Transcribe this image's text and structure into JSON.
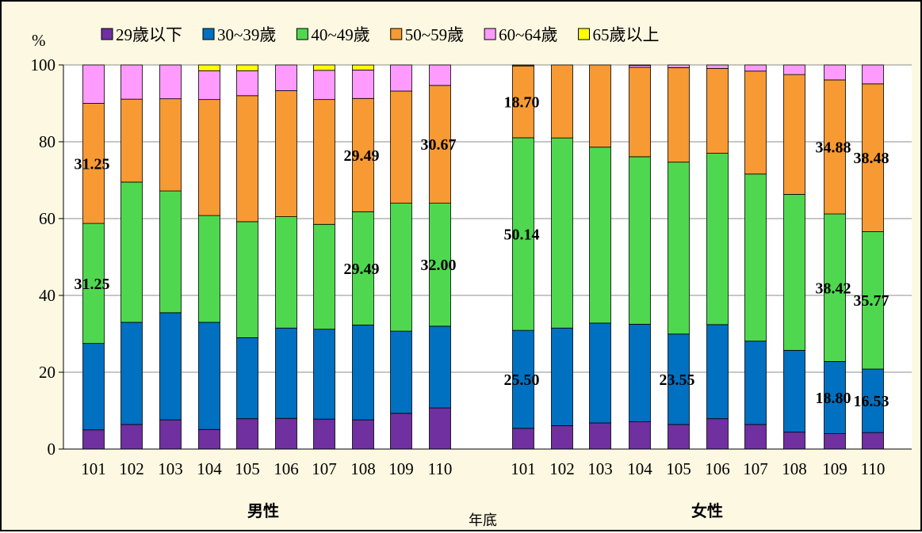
{
  "chart_data": {
    "type": "bar",
    "stacked": true,
    "y_unit": "%",
    "ylim": [
      0,
      100
    ],
    "yticks": [
      0,
      20,
      40,
      60,
      80,
      100
    ],
    "grid": true,
    "legend_position": "top",
    "xlabel": "年底",
    "groups": [
      {
        "label": "男性",
        "categories": [
          "101",
          "102",
          "103",
          "104",
          "105",
          "106",
          "107",
          "108",
          "109",
          "110"
        ]
      },
      {
        "label": "女性",
        "categories": [
          "101",
          "102",
          "103",
          "104",
          "105",
          "106",
          "107",
          "108",
          "109",
          "110"
        ]
      }
    ],
    "series": [
      {
        "name": "29歲以下",
        "color": "#7030a0",
        "male": [
          5.0,
          6.4,
          7.6,
          5.1,
          7.9,
          8.0,
          7.8,
          7.6,
          9.3,
          10.7
        ],
        "female": [
          5.4,
          6.1,
          6.8,
          7.1,
          6.4,
          7.9,
          6.4,
          4.4,
          4.0,
          4.3
        ]
      },
      {
        "name": "30~39歲",
        "color": "#0070c0",
        "male": [
          22.5,
          26.6,
          27.9,
          27.9,
          21.1,
          23.5,
          23.4,
          24.7,
          21.4,
          21.3
        ],
        "female": [
          25.5,
          25.4,
          26.0,
          25.4,
          23.55,
          24.5,
          21.7,
          21.3,
          18.8,
          16.53
        ]
      },
      {
        "name": "40~49歲",
        "color": "#4fd84f",
        "male": [
          31.25,
          36.5,
          31.7,
          27.8,
          30.2,
          29.0,
          27.3,
          29.49,
          33.3,
          32.0
        ],
        "female": [
          50.14,
          49.5,
          45.8,
          43.6,
          44.75,
          44.6,
          43.5,
          40.6,
          38.42,
          35.77
        ]
      },
      {
        "name": "50~59歲",
        "color": "#f79a34",
        "male": [
          31.25,
          21.6,
          24.0,
          30.2,
          32.8,
          32.8,
          32.5,
          29.49,
          29.2,
          30.67
        ],
        "female": [
          18.7,
          19.0,
          21.4,
          23.3,
          24.6,
          22.1,
          26.8,
          31.2,
          34.88,
          38.48
        ]
      },
      {
        "name": "60~64歲",
        "color": "#ff9bff",
        "male": [
          10.0,
          8.9,
          8.8,
          7.5,
          6.5,
          6.7,
          7.6,
          7.4,
          6.8,
          5.33
        ],
        "female": [
          0.06,
          0.0,
          0.0,
          0.5,
          0.7,
          0.9,
          1.6,
          2.5,
          3.9,
          4.92
        ]
      },
      {
        "name": "65歲以上",
        "color": "#ffff00",
        "male": [
          0.0,
          0.0,
          0.0,
          1.5,
          1.5,
          0.0,
          1.4,
          1.3,
          0.0,
          0.0
        ],
        "female": [
          0.2,
          0.0,
          0.0,
          0.1,
          0.0,
          0.0,
          0.0,
          0.0,
          0.0,
          0.0
        ]
      }
    ],
    "data_labels": [
      {
        "text": "31.25",
        "group": 0,
        "index": 0,
        "series": 3
      },
      {
        "text": "31.25",
        "group": 0,
        "index": 0,
        "series": 2
      },
      {
        "text": "29.49",
        "group": 0,
        "index": 7,
        "series": 3
      },
      {
        "text": "29.49",
        "group": 0,
        "index": 7,
        "series": 2
      },
      {
        "text": "30.67",
        "group": 0,
        "index": 9,
        "series": 3
      },
      {
        "text": "32.00",
        "group": 0,
        "index": 9,
        "series": 2
      },
      {
        "text": "18.70",
        "group": 1,
        "index": 0,
        "series": 3
      },
      {
        "text": "50.14",
        "group": 1,
        "index": 0,
        "series": 2
      },
      {
        "text": "25.50",
        "group": 1,
        "index": 0,
        "series": 1
      },
      {
        "text": "23.55",
        "group": 1,
        "index": 4,
        "series": 1
      },
      {
        "text": "34.88",
        "group": 1,
        "index": 8,
        "series": 3
      },
      {
        "text": "38.42",
        "group": 1,
        "index": 8,
        "series": 2
      },
      {
        "text": "18.80",
        "group": 1,
        "index": 8,
        "series": 1
      },
      {
        "text": "38.48",
        "group": 1,
        "index": 9,
        "series": 3
      },
      {
        "text": "35.77",
        "group": 1,
        "index": 9,
        "series": 2
      },
      {
        "text": "16.53",
        "group": 1,
        "index": 9,
        "series": 1
      }
    ]
  }
}
